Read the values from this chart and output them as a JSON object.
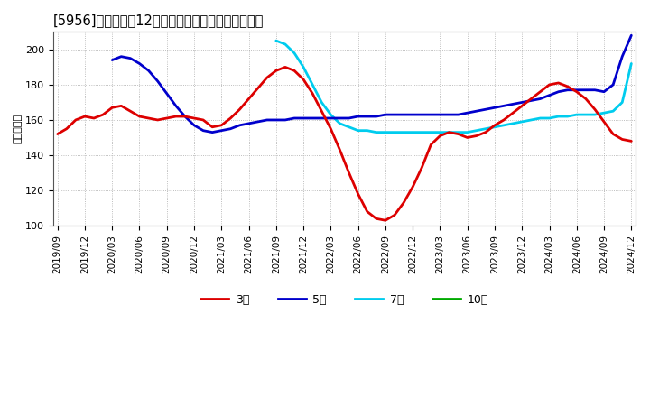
{
  "title": "[5956]　経常利益12か月移動合計の標準偏差の推移",
  "ylabel": "（百万円）",
  "ylim": [
    100,
    210
  ],
  "yticks": [
    100,
    120,
    140,
    160,
    180,
    200
  ],
  "bg_color": "#ffffff",
  "series": {
    "3year": {
      "label": "3年",
      "color": "#dd0000",
      "y": [
        152,
        155,
        160,
        162,
        161,
        163,
        167,
        168,
        165,
        162,
        161,
        160,
        161,
        162,
        162,
        161,
        160,
        156,
        157,
        161,
        166,
        172,
        178,
        184,
        188,
        190,
        188,
        183,
        175,
        165,
        155,
        143,
        130,
        118,
        108,
        104,
        103,
        106,
        113,
        122,
        133,
        146,
        151,
        153,
        152,
        150,
        151,
        153,
        157,
        160,
        164,
        168,
        172,
        176,
        180,
        181,
        179,
        176,
        172,
        166,
        159,
        152,
        149,
        148
      ]
    },
    "5year": {
      "label": "5年",
      "color": "#0000cc",
      "y": [
        null,
        null,
        null,
        null,
        null,
        null,
        194,
        196,
        195,
        192,
        188,
        182,
        175,
        168,
        162,
        157,
        154,
        153,
        154,
        155,
        157,
        158,
        159,
        160,
        160,
        160,
        161,
        161,
        161,
        161,
        161,
        161,
        161,
        162,
        162,
        162,
        163,
        163,
        163,
        163,
        163,
        163,
        163,
        163,
        163,
        164,
        165,
        166,
        167,
        168,
        169,
        170,
        171,
        172,
        174,
        176,
        177,
        177,
        177,
        177,
        176,
        180,
        196,
        208
      ]
    },
    "7year": {
      "label": "7年",
      "color": "#00ccee",
      "y": [
        null,
        null,
        null,
        null,
        null,
        null,
        null,
        null,
        null,
        null,
        null,
        null,
        null,
        null,
        null,
        null,
        null,
        null,
        null,
        null,
        null,
        null,
        null,
        null,
        205,
        203,
        198,
        190,
        180,
        170,
        163,
        158,
        156,
        154,
        154,
        153,
        153,
        153,
        153,
        153,
        153,
        153,
        153,
        153,
        153,
        153,
        154,
        155,
        156,
        157,
        158,
        159,
        160,
        161,
        161,
        162,
        162,
        163,
        163,
        163,
        164,
        165,
        170,
        192
      ]
    },
    "10year": {
      "label": "10年",
      "color": "#00aa00",
      "y": [
        null,
        null,
        null,
        null,
        null,
        null,
        null,
        null,
        null,
        null,
        null,
        null,
        null,
        null,
        null,
        null,
        null,
        null,
        null,
        null,
        null,
        null,
        null,
        null,
        null,
        null,
        null,
        null,
        null,
        null,
        null,
        null,
        null,
        null,
        null,
        null,
        null,
        null,
        null,
        null,
        null,
        null,
        null,
        null,
        null,
        null,
        null,
        null,
        null,
        null,
        null,
        null,
        null,
        null,
        null,
        null,
        null,
        null,
        null,
        null,
        null,
        null,
        null,
        null
      ]
    }
  },
  "xtick_labels": [
    "2019/09",
    "2019/12",
    "2020/03",
    "2020/06",
    "2020/09",
    "2020/12",
    "2021/03",
    "2021/06",
    "2021/09",
    "2021/12",
    "2022/03",
    "2022/06",
    "2022/09",
    "2022/12",
    "2023/03",
    "2023/06",
    "2023/09",
    "2023/12",
    "2024/03",
    "2024/06",
    "2024/09",
    "2024/12"
  ],
  "xtick_positions": [
    0,
    3,
    6,
    9,
    12,
    15,
    18,
    21,
    24,
    27,
    30,
    33,
    36,
    39,
    42,
    45,
    48,
    51,
    54,
    57,
    60,
    63
  ]
}
